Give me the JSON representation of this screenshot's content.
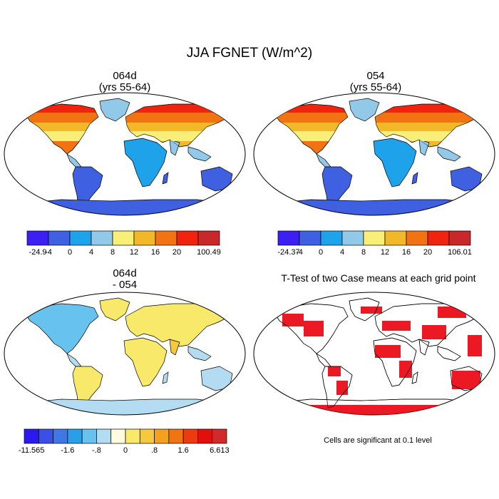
{
  "figure": {
    "title": "JJA FGNET (W/m^2)"
  },
  "panels": [
    {
      "id": "p1",
      "title_line1": "064d",
      "title_line2": "(yrs 55-64)",
      "colorbar": {
        "labels": [
          "-24.9",
          "-4",
          "0",
          "4",
          "8",
          "12",
          "16",
          "20",
          "100.49"
        ],
        "colors": [
          "#3b1ff5",
          "#3f60e0",
          "#1ea2ea",
          "#92c8e8",
          "#f7ef78",
          "#f3b82a",
          "#f27312",
          "#f0230e",
          "#c8282a"
        ]
      }
    },
    {
      "id": "p2",
      "title_line1": "054",
      "title_line2": "(yrs 55-64)",
      "colorbar": {
        "labels": [
          "-24.37",
          "-4",
          "0",
          "4",
          "8",
          "12",
          "16",
          "20",
          "106.01"
        ],
        "colors": [
          "#3b1ff5",
          "#3f60e0",
          "#1ea2ea",
          "#92c8e8",
          "#f7ef78",
          "#f3b82a",
          "#f27312",
          "#f0230e",
          "#c8282a"
        ]
      }
    },
    {
      "id": "p3",
      "title_line1": "064d",
      "title_line2": "- 054",
      "colorbar": {
        "labels": [
          "-11.565",
          "-1.6",
          "-.8",
          "0",
          ".8",
          "1.6",
          "6.613"
        ],
        "colors": [
          "#2a1af0",
          "#3a4ee8",
          "#3f78e6",
          "#2a9fe8",
          "#67c2ee",
          "#b3dcf2",
          "#fdfbe0",
          "#f8e96a",
          "#f6c83c",
          "#f4a21e",
          "#f27312",
          "#ee3a10",
          "#e0100c",
          "#d02a2a"
        ]
      }
    },
    {
      "id": "p4",
      "title": "T-Test of two Case means at each grid point",
      "note": "Cells are significant at 0.1 level",
      "significant_color": "#e8000b"
    }
  ]
}
